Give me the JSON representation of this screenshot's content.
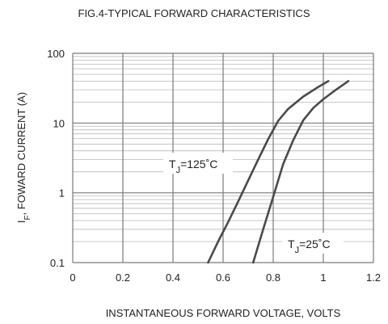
{
  "chart_data": {
    "type": "line",
    "title": "FIG.4-TYPICAL FORWARD CHARACTERISTICS",
    "xlabel": "INSTANTANEOUS FORWARD VOLTAGE, VOLTS",
    "ylabel": {
      "main": "I",
      "sub": "F",
      "rest": ", FOWARD CURRENT (A)"
    },
    "xscale": "linear",
    "yscale": "log",
    "xlim": [
      0,
      1.2
    ],
    "ylim": [
      0.1,
      100
    ],
    "xticks": [
      0,
      0.2,
      0.4,
      0.6,
      0.8,
      1,
      1.2
    ],
    "xtick_labels": [
      "0",
      "0.2",
      "0.4",
      "0.6",
      "0.8",
      "1",
      "1.2"
    ],
    "yticks": [
      0.1,
      1,
      10,
      100
    ],
    "ytick_labels": [
      "0.1",
      "1",
      "10",
      "100"
    ],
    "grid": true,
    "series": [
      {
        "name": {
          "main": "T",
          "sub": "J",
          "rest": "=125˚C"
        },
        "x": [
          0.54,
          0.58,
          0.62,
          0.66,
          0.7,
          0.74,
          0.78,
          0.82,
          0.86,
          0.92,
          0.98,
          1.02
        ],
        "y": [
          0.1,
          0.2,
          0.38,
          0.75,
          1.5,
          3.0,
          5.9,
          10.8,
          16.0,
          24.0,
          33.0,
          40.0
        ],
        "color": "#4a4a4a"
      },
      {
        "name": {
          "main": "T",
          "sub": "J",
          "rest": "=25˚C"
        },
        "x": [
          0.72,
          0.76,
          0.8,
          0.84,
          0.88,
          0.92,
          0.96,
          1.0,
          1.05,
          1.1
        ],
        "y": [
          0.1,
          0.3,
          0.88,
          2.6,
          5.7,
          11.0,
          16.5,
          22.0,
          30.0,
          40.0
        ],
        "color": "#4a4a4a"
      }
    ]
  }
}
